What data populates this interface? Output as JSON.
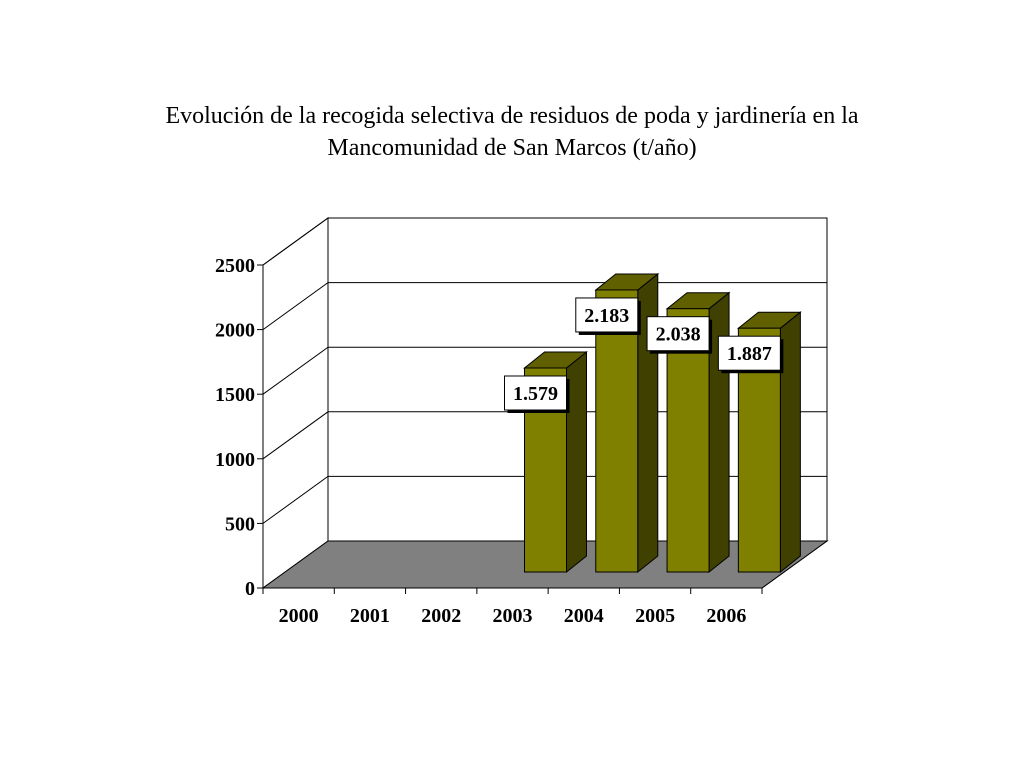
{
  "chart_data": {
    "type": "bar",
    "title_lines": [
      "Evolución de la recogida selectiva de residuos de poda y jardinería en la",
      "Mancomunidad de San Marcos (t/año)"
    ],
    "xlabel": "",
    "ylabel": "",
    "categories": [
      "2000",
      "2001",
      "2002",
      "2003",
      "2004",
      "2005",
      "2006"
    ],
    "values": [
      null,
      null,
      null,
      1579,
      2183,
      2038,
      1887
    ],
    "data_labels": [
      "",
      "",
      "",
      "1.579",
      "2.183",
      "2.038",
      "1.887"
    ],
    "y_ticks": [
      "0",
      "500",
      "1000",
      "1500",
      "2000",
      "2500"
    ],
    "ylim": [
      0,
      2500
    ],
    "grid": true,
    "legend": "none",
    "three_d": true,
    "colors": {
      "bar_front": "#808000",
      "bar_side": "#404000",
      "bar_top": "#606000",
      "floor": "#808080",
      "grid": "#000000"
    }
  }
}
